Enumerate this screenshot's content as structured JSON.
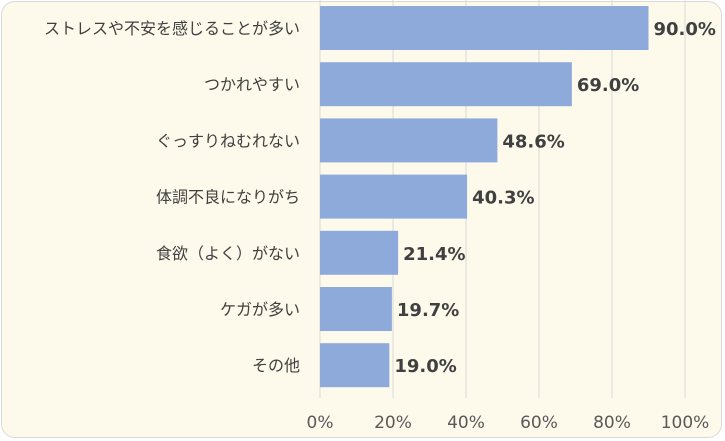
{
  "chart_data": {
    "type": "bar",
    "orientation": "horizontal",
    "categories": [
      "ストレスや不安を感じることが多い",
      "つかれやすい",
      "ぐっすりねむれない",
      "体調不良になりがち",
      "食欲（よく）がない",
      "ケガが多い",
      "その他"
    ],
    "values": [
      90.0,
      69.0,
      48.6,
      40.3,
      21.4,
      19.7,
      19.0
    ],
    "data_labels": [
      "90.0%",
      "69.0%",
      "48.6%",
      "40.3%",
      "21.4%",
      "19.7%",
      "19.0%"
    ],
    "xlim": [
      0,
      100
    ],
    "ticks": [
      0,
      20,
      40,
      60,
      80,
      100
    ],
    "tick_labels": [
      "0%",
      "20%",
      "40%",
      "60%",
      "80%",
      "100%"
    ],
    "title": "",
    "xlabel": "",
    "ylabel": "",
    "grid": "vertical",
    "legend": "none",
    "colors": {
      "bar": "#8eaadb",
      "background": "#fdfaec",
      "grid": "#d9d9d9",
      "text": "#404040"
    }
  }
}
